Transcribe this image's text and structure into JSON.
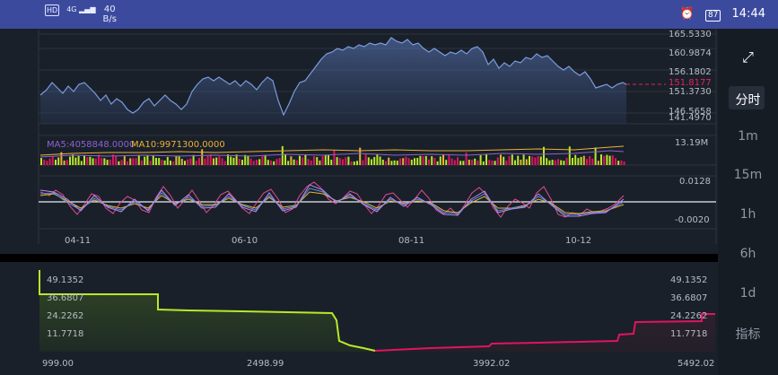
{
  "status_bar": {
    "network_badge": "HD",
    "signal_label": "4G",
    "speed_value": "40",
    "speed_unit": "B/s",
    "alarm_icon": "alarm-icon",
    "battery": "87",
    "time": "14:44"
  },
  "sidebar": {
    "expand_icon": "expand-icon",
    "items": [
      {
        "label": "分时",
        "active": true
      },
      {
        "label": "1m",
        "active": false
      },
      {
        "label": "15m",
        "active": false
      },
      {
        "label": "1h",
        "active": false
      },
      {
        "label": "6h",
        "active": false
      },
      {
        "label": "1d",
        "active": false
      },
      {
        "label": "指标",
        "active": false
      }
    ]
  },
  "price_chart": {
    "y_ticks": [
      "165.5330",
      "160.9874",
      "156.1802",
      "151.3730",
      "146.5658",
      "141.4970"
    ],
    "current_price": "151.8177"
  },
  "volume_chart": {
    "ma5_label": "MA5:4058848.0000",
    "ma10_label": "MA10:9971300.0000",
    "max_label": "13.19M"
  },
  "oscillator_chart": {
    "top_label": "0.0128",
    "bottom_label": "-0.0020"
  },
  "time_axis": {
    "labels": [
      "04-11",
      "06-10",
      "08-11",
      "10-12"
    ]
  },
  "depth_chart": {
    "y_ticks": [
      "49.1352",
      "36.6807",
      "24.2262",
      "11.7718"
    ],
    "x_ticks": [
      "999.00",
      "2498.99",
      "3992.02",
      "5492.02"
    ]
  },
  "colors": {
    "price_line": "#6e8fd4",
    "current_price": "#e0245e",
    "bid": "#b8e82a",
    "ask": "#e0145f",
    "ma5": "#8a63d2",
    "ma10": "#e8b23a"
  }
}
